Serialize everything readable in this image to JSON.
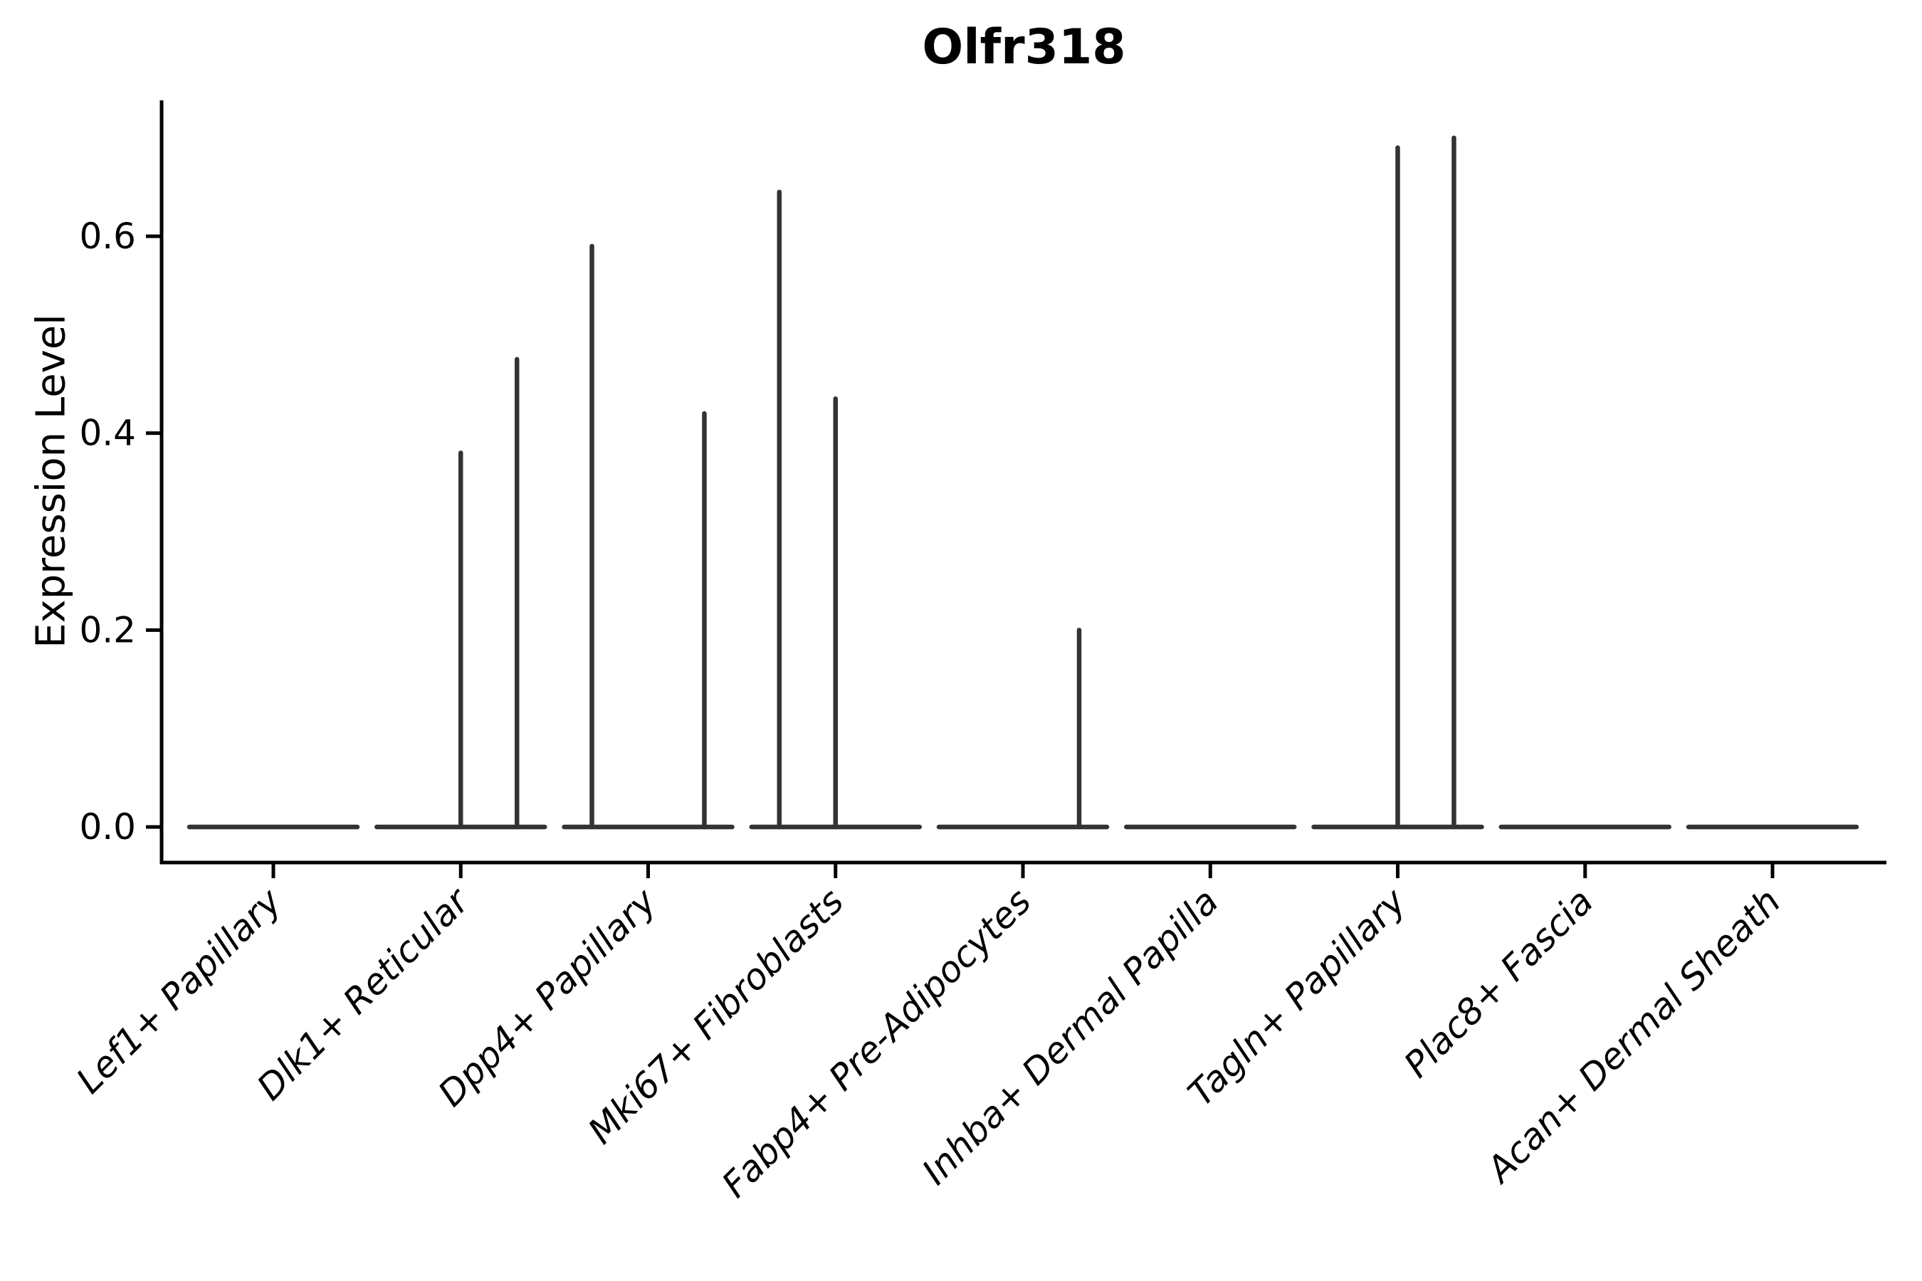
{
  "chart_data": {
    "type": "violin",
    "title": "Olfr318",
    "ylabel": "Expression Level",
    "xlabel": "",
    "grid": false,
    "legend": null,
    "axis_color": "#000000",
    "violin_color": "#333333",
    "yticks": [
      "0.0",
      "0.2",
      "0.4",
      "0.6"
    ],
    "ytick_values": [
      0.0,
      0.2,
      0.4,
      0.6
    ],
    "ylim": [
      -0.036,
      0.738
    ],
    "categories": [
      "Lef1+ Papillary",
      "Dlk1+ Reticular",
      "Dpp4+ Papillary",
      "Mki67+ Fibroblasts",
      "Fabp4+ Pre-Adipocytes",
      "Inhba+ Dermal Papilla",
      "Tagln+ Papillary",
      "Plac8+ Fascia",
      "Acan+ Dermal Sheath"
    ],
    "series": [
      {
        "name": "Lef1+ Papillary",
        "baseline_value": 0.0,
        "spikes": []
      },
      {
        "name": "Dlk1+ Reticular",
        "baseline_value": 0.0,
        "spikes": [
          {
            "offset_frac": 0.0,
            "max": 0.38
          },
          {
            "offset_frac": 0.3,
            "max": 0.475
          }
        ]
      },
      {
        "name": "Dpp4+ Papillary",
        "baseline_value": 0.0,
        "spikes": [
          {
            "offset_frac": -0.3,
            "max": 0.59
          },
          {
            "offset_frac": 0.3,
            "max": 0.42
          }
        ]
      },
      {
        "name": "Mki67+ Fibroblasts",
        "baseline_value": 0.0,
        "spikes": [
          {
            "offset_frac": -0.3,
            "max": 0.645
          },
          {
            "offset_frac": 0.0,
            "max": 0.435
          }
        ]
      },
      {
        "name": "Fabp4+ Pre-Adipocytes",
        "baseline_value": 0.0,
        "spikes": [
          {
            "offset_frac": 0.3,
            "max": 0.2
          }
        ]
      },
      {
        "name": "Inhba+ Dermal Papilla",
        "baseline_value": 0.0,
        "spikes": []
      },
      {
        "name": "Tagln+ Papillary",
        "baseline_value": 0.0,
        "spikes": [
          {
            "offset_frac": 0.0,
            "max": 0.69
          },
          {
            "offset_frac": 0.3,
            "max": 0.7
          }
        ]
      },
      {
        "name": "Plac8+ Fascia",
        "baseline_value": 0.0,
        "spikes": []
      },
      {
        "name": "Acan+ Dermal Sheath",
        "baseline_value": 0.0,
        "spikes": []
      }
    ]
  }
}
